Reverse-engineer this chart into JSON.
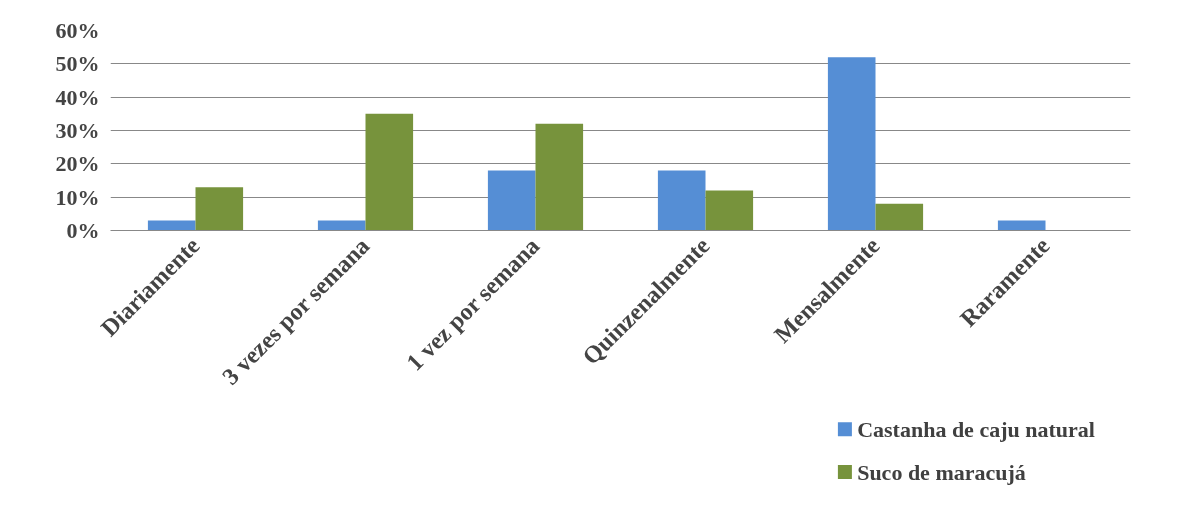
{
  "chart_data": {
    "type": "bar",
    "categories": [
      "Diariamente",
      "3 vezes por semana",
      "1 vez por semana",
      "Quinzenalmente",
      "Mensalmente",
      "Raramente"
    ],
    "series": [
      {
        "name": "Castanha de caju natural",
        "color": "#558ed5",
        "values": [
          3,
          3,
          18,
          18,
          52,
          3
        ]
      },
      {
        "name": "Suco de maracujá",
        "color": "#77933c",
        "values": [
          13,
          35,
          32,
          12,
          8,
          0
        ]
      }
    ],
    "ylim": [
      0,
      60
    ],
    "yticks": [
      {
        "value": 0,
        "label": "0%"
      },
      {
        "value": 10,
        "label": "10%"
      },
      {
        "value": 20,
        "label": "20%"
      },
      {
        "value": 30,
        "label": "30%"
      },
      {
        "value": 40,
        "label": "40%"
      },
      {
        "value": 50,
        "label": "50%"
      },
      {
        "value": 60,
        "label": "60%"
      }
    ],
    "grid": "y",
    "legend": "bottom right"
  }
}
